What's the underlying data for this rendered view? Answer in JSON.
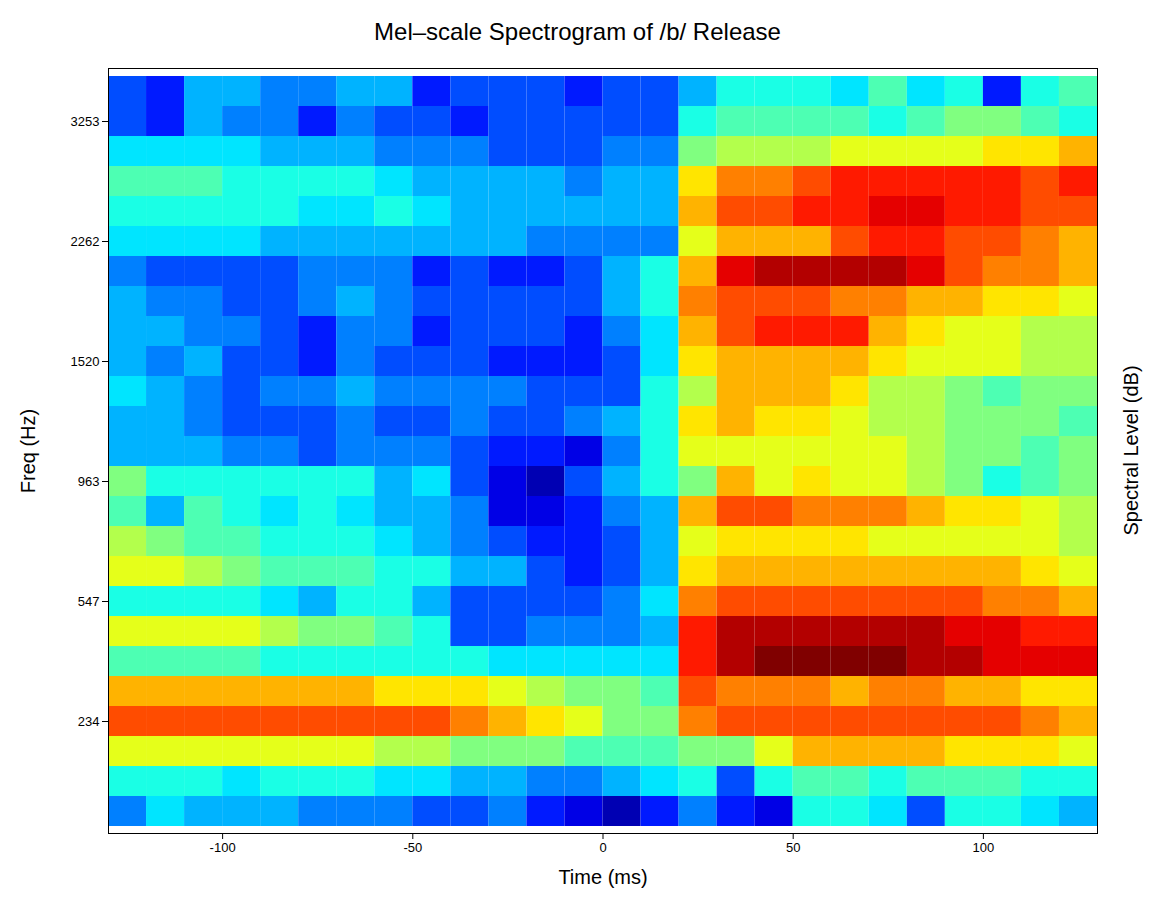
{
  "chart_data": {
    "type": "heatmap",
    "title": "Mel–scale Spectrogram of /b/ Release",
    "x_label": "Time (ms)",
    "y_label": "Freq (Hz)",
    "colorbar_label": "Spectral Level (dB)",
    "x": [
      -125,
      -115,
      -105,
      -95,
      -85,
      -75,
      -65,
      -55,
      -45,
      -35,
      -25,
      -15,
      -5,
      5,
      15,
      25,
      35,
      45,
      55,
      65,
      75,
      85,
      95,
      105,
      115,
      125
    ],
    "y": [
      52,
      109,
      169,
      234,
      304,
      379,
      460,
      547,
      640,
      740,
      848,
      963,
      1088,
      1221,
      1365,
      1520,
      1685,
      1864,
      2055,
      2262,
      2483,
      2721,
      2977,
      3253,
      3546
    ],
    "levels": [
      [
        2.5,
        3.5,
        3,
        3,
        3,
        2.5,
        2.5,
        2.5,
        2,
        2,
        2.5,
        1.5,
        1,
        0.5,
        1.5,
        2.5,
        1.5,
        1,
        4,
        4,
        3.5,
        2,
        4,
        4,
        3.5,
        3
      ],
      [
        4,
        4,
        4,
        3.5,
        4,
        4,
        4,
        3.5,
        3.5,
        3,
        3,
        2.5,
        2.5,
        3,
        3.5,
        4,
        2,
        4,
        4.5,
        4.5,
        4,
        4.5,
        4.5,
        4.5,
        4,
        4
      ],
      [
        6,
        6,
        6,
        6,
        6,
        6,
        6,
        5.5,
        5.5,
        5,
        5,
        5,
        4.5,
        4.5,
        4.5,
        5,
        5,
        6,
        7,
        7,
        7,
        7,
        6.5,
        6.5,
        6.5,
        6
      ],
      [
        8,
        8,
        8,
        8,
        8,
        8,
        8,
        8,
        8,
        7.5,
        7,
        6.5,
        6,
        5,
        5,
        7.5,
        8,
        8,
        8,
        8,
        8,
        8,
        8,
        8,
        7.5,
        7
      ],
      [
        7,
        7,
        7,
        7,
        7,
        7,
        7,
        6.5,
        6.5,
        6.5,
        6,
        5.5,
        5,
        5,
        4.5,
        8,
        7.5,
        7.5,
        7.5,
        7,
        7.5,
        7.5,
        7,
        7,
        6.5,
        6.5
      ],
      [
        4.5,
        4.5,
        4.5,
        4.5,
        4,
        4,
        4,
        4,
        4,
        4,
        3.5,
        3.5,
        3.5,
        3.5,
        3.5,
        8.5,
        9.5,
        10,
        10,
        10,
        10,
        9.5,
        9.5,
        9,
        9,
        9
      ],
      [
        6,
        6,
        6,
        6,
        5.5,
        5,
        5,
        4.5,
        4,
        2,
        2,
        2.5,
        2.5,
        2.5,
        3,
        8.5,
        9.5,
        9.5,
        9.5,
        9.5,
        9.5,
        9.5,
        9,
        9,
        8.5,
        8.5
      ],
      [
        4,
        4,
        4,
        4,
        3.5,
        3,
        4,
        4,
        3,
        2,
        2,
        2,
        2,
        2.5,
        3.5,
        7.5,
        8,
        8,
        8,
        8,
        8,
        8,
        8,
        7.5,
        7.5,
        7
      ],
      [
        6,
        6,
        5.5,
        5,
        4.5,
        4.5,
        4.5,
        4,
        4,
        3,
        3,
        2,
        1.5,
        2,
        3,
        6.5,
        7,
        7,
        7,
        7,
        7,
        7,
        7,
        7,
        6.5,
        6
      ],
      [
        5.5,
        5,
        4.5,
        4.5,
        4,
        4,
        4,
        3.5,
        3,
        2.5,
        2,
        1.5,
        1.5,
        2,
        3,
        6,
        6.5,
        6.5,
        6.5,
        6.5,
        6,
        6,
        6,
        6,
        6,
        5.5
      ],
      [
        4.5,
        3,
        4.5,
        4,
        3.5,
        4,
        3.5,
        3,
        3,
        2.5,
        1,
        1,
        1.5,
        2.5,
        3,
        7,
        8,
        8,
        7.5,
        7.5,
        7.5,
        7,
        6.5,
        6.5,
        6,
        5.5
      ],
      [
        5,
        4,
        4,
        4,
        4,
        4,
        4,
        3,
        3.5,
        2,
        1,
        0.5,
        2,
        3,
        4,
        5,
        7,
        6,
        6.5,
        6,
        6,
        5.5,
        5,
        4,
        4.5,
        5
      ],
      [
        3,
        3,
        3,
        2.5,
        2.5,
        2,
        2.5,
        2.5,
        2.5,
        2,
        1.5,
        1.5,
        1,
        2.5,
        4,
        6,
        6,
        6,
        6,
        6,
        6,
        5.5,
        5,
        5,
        4.5,
        5
      ],
      [
        3,
        3,
        2.5,
        2,
        2,
        2,
        2.5,
        2,
        2,
        2.5,
        2,
        2,
        2.5,
        3,
        4,
        6.5,
        7,
        6.5,
        6.5,
        6,
        5.5,
        5.5,
        5,
        5,
        5,
        4.5
      ],
      [
        3.5,
        3,
        2.5,
        2,
        2.5,
        2.5,
        3,
        2.5,
        2.5,
        2.5,
        2.5,
        2,
        2,
        2,
        4,
        5.5,
        7,
        7,
        7,
        6.5,
        5.5,
        5.5,
        5,
        4.5,
        5,
        5
      ],
      [
        3,
        2.5,
        3,
        2,
        2,
        1.5,
        2.5,
        2,
        2,
        2,
        1.5,
        1.5,
        1.5,
        2,
        3.5,
        6.5,
        7,
        7,
        7,
        7,
        6.5,
        6,
        6,
        6,
        5.5,
        5.5
      ],
      [
        3,
        3,
        2.5,
        2.5,
        2,
        1.5,
        2.5,
        2.5,
        1.5,
        2,
        2,
        2,
        1.5,
        2.5,
        3.5,
        7,
        8,
        8.5,
        8.5,
        8.5,
        7,
        6.5,
        6,
        6,
        5.5,
        5.5
      ],
      [
        3,
        2.5,
        2.5,
        2,
        2,
        2.5,
        3,
        2.5,
        2,
        2,
        2,
        2,
        2,
        3,
        4,
        7.5,
        8,
        8,
        8,
        7.5,
        7.5,
        7,
        7,
        6.5,
        6.5,
        6
      ],
      [
        2.5,
        2,
        2,
        2,
        2,
        2.5,
        2.5,
        2.5,
        1.5,
        2,
        1.5,
        1.5,
        2,
        3,
        4,
        7,
        9,
        9.5,
        9.5,
        9.5,
        9.5,
        9,
        8,
        7.5,
        7.5,
        7
      ],
      [
        3.5,
        3.5,
        3.5,
        3.5,
        3,
        3,
        3,
        3,
        3,
        3,
        3,
        2.5,
        2.5,
        2.5,
        2.5,
        6,
        7,
        7,
        7,
        8,
        8.5,
        8.5,
        8,
        8,
        7.5,
        7
      ],
      [
        4,
        4,
        4,
        4,
        4,
        3.5,
        3.5,
        4,
        3.5,
        3,
        3,
        3,
        3,
        3,
        3,
        7,
        8,
        8,
        8.5,
        8.5,
        9,
        9,
        8.5,
        8.5,
        8,
        8
      ],
      [
        4.5,
        4.5,
        4.5,
        4,
        4,
        4,
        4,
        3.5,
        3,
        3,
        3,
        3,
        2.5,
        3,
        3,
        6.5,
        7.5,
        7.5,
        8,
        8.5,
        8.5,
        8.5,
        8.5,
        8.5,
        8,
        8.5
      ],
      [
        3.5,
        3.5,
        3.5,
        3.5,
        3,
        3,
        3,
        2.5,
        2.5,
        2.5,
        2,
        2,
        2,
        2.5,
        2.5,
        5,
        5.5,
        5.5,
        5.5,
        6,
        6,
        6,
        6,
        6.5,
        6.5,
        7
      ],
      [
        2,
        1.5,
        3,
        2.5,
        2.5,
        1.5,
        2.5,
        2,
        2,
        1.5,
        2,
        2,
        2,
        2,
        2,
        4,
        4.5,
        4.5,
        4.5,
        4.5,
        4,
        4.5,
        5,
        5,
        4.5,
        4
      ],
      [
        2,
        1.5,
        3,
        3,
        2.5,
        2.5,
        3,
        3,
        1.5,
        2,
        2,
        2,
        1.5,
        2,
        2,
        3,
        4,
        4,
        4,
        3.5,
        4.5,
        3.5,
        4,
        1.5,
        4,
        4.5
      ]
    ],
    "xlim": [
      -130,
      130
    ],
    "xticks": [
      -100,
      -50,
      0,
      50,
      100
    ],
    "yticks": [
      234,
      547,
      963,
      1520,
      2262,
      3253
    ],
    "clim": [
      0,
      10
    ]
  }
}
